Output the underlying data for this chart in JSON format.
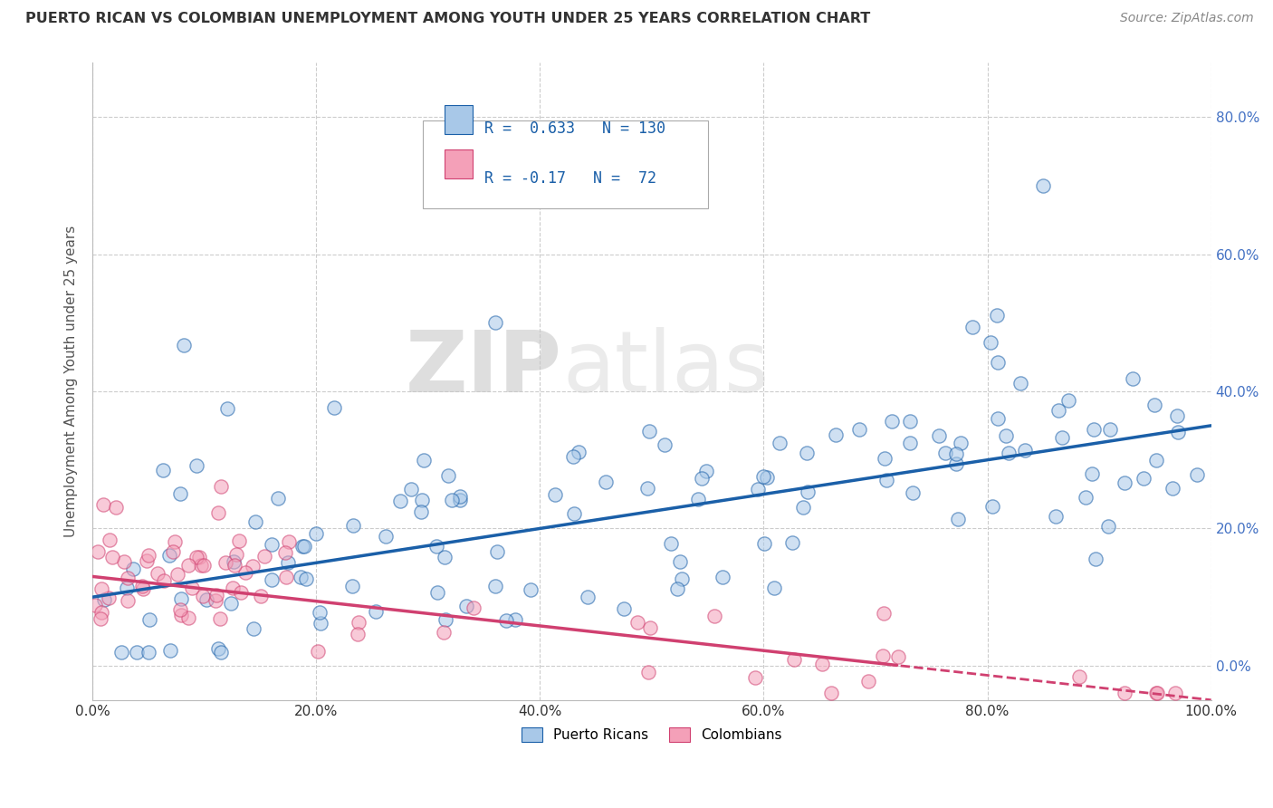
{
  "title": "PUERTO RICAN VS COLOMBIAN UNEMPLOYMENT AMONG YOUTH UNDER 25 YEARS CORRELATION CHART",
  "source": "Source: ZipAtlas.com",
  "ylabel": "Unemployment Among Youth under 25 years",
  "xlim": [
    0.0,
    1.0
  ],
  "ylim": [
    -0.05,
    0.88
  ],
  "xticks": [
    0.0,
    0.2,
    0.4,
    0.6,
    0.8,
    1.0
  ],
  "xticklabels": [
    "0.0%",
    "20.0%",
    "40.0%",
    "60.0%",
    "80.0%",
    "100.0%"
  ],
  "yticks": [
    0.0,
    0.2,
    0.4,
    0.6,
    0.8
  ],
  "yticklabels": [
    "0.0%",
    "20.0%",
    "40.0%",
    "60.0%",
    "80.0%"
  ],
  "blue_scatter_color": "#a8c8e8",
  "pink_scatter_color": "#f4a0b8",
  "blue_line_color": "#1a5fa8",
  "pink_line_color": "#d04070",
  "blue_r": 0.633,
  "blue_n": 130,
  "pink_r": -0.17,
  "pink_n": 72,
  "legend_labels": [
    "Puerto Ricans",
    "Colombians"
  ],
  "background_color": "#ffffff",
  "grid_color": "#cccccc",
  "right_ytick_color": "#4472C4",
  "title_color": "#333333",
  "source_color": "#888888",
  "ylabel_color": "#555555",
  "watermark_zip": "ZIP",
  "watermark_atlas": "atlas",
  "blue_trend_x0": 0.0,
  "blue_trend_y0": 0.1,
  "blue_trend_x1": 1.0,
  "blue_trend_y1": 0.35,
  "pink_trend_x0": 0.0,
  "pink_trend_y0": 0.13,
  "pink_trend_x1": 1.0,
  "pink_trend_y1": -0.05
}
